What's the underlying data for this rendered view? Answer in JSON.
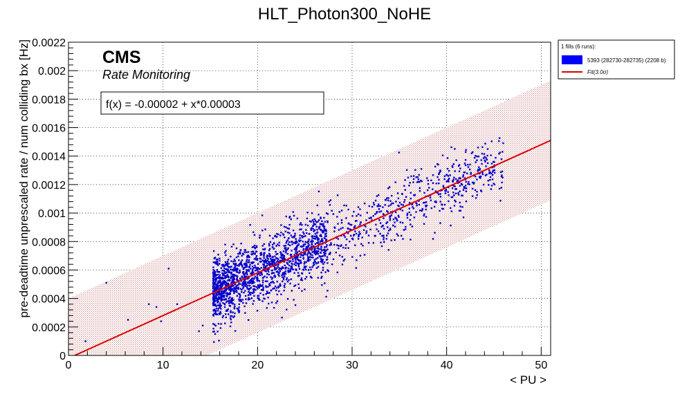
{
  "chart_data": {
    "type": "scatter",
    "title": "HLT_Photon300_NoHE",
    "xlabel": "< PU >",
    "ylabel": "pre-deadtime unprescaled rate / num colliding bx [Hz]",
    "xlim": [
      0,
      51
    ],
    "ylim": [
      0,
      0.0022
    ],
    "x_ticks": [
      0,
      10,
      20,
      30,
      40,
      50
    ],
    "x_tick_labels": [
      "0",
      "10",
      "20",
      "30",
      "40",
      "50"
    ],
    "y_ticks": [
      0,
      0.0002,
      0.0004,
      0.0006,
      0.0008,
      0.001,
      0.0012,
      0.0014,
      0.0016,
      0.0018,
      0.002,
      0.0022
    ],
    "y_tick_labels": [
      "0",
      "0.0002",
      "0.0004",
      "0.0006",
      "0.0008",
      "0.001",
      "0.0012",
      "0.0014",
      "0.0016",
      "0.0018",
      "0.002",
      "0.0022"
    ],
    "grid": true,
    "cms_label": "CMS",
    "cms_sublabel": "Rate Monitoring",
    "fit_label": "f(x) = -0.00002 + x*0.00003",
    "fit": {
      "intercept": -2e-05,
      "slope": 3e-05,
      "band_halfwidth": 0.00042,
      "x_range": [
        0,
        51
      ]
    },
    "legend": {
      "position": "top-right",
      "header": "1 fills (6 runs):",
      "entries": [
        {
          "label": "5393 (282730-282735) (2208 b)",
          "color": "#0000ff",
          "kind": "box"
        },
        {
          "label": "Fit(3.0σ)",
          "color": "#dd0000",
          "kind": "line"
        }
      ]
    },
    "series": [
      {
        "color": "#0000cc",
        "n_points": 2208,
        "x_range": [
          15.3,
          46
        ],
        "spread": 0.00011,
        "outliers": [
          {
            "x": 1.8,
            "y": 0.0001
          },
          {
            "x": 4.0,
            "y": 0.00051
          },
          {
            "x": 6.3,
            "y": 0.00025
          },
          {
            "x": 8.5,
            "y": 0.00036
          },
          {
            "x": 9.3,
            "y": 0.00034
          },
          {
            "x": 9.8,
            "y": 0.00024
          },
          {
            "x": 10.6,
            "y": 0.00061
          },
          {
            "x": 11.5,
            "y": 0.00036
          },
          {
            "x": 13.8,
            "y": 0.00017
          },
          {
            "x": 14.2,
            "y": 0.00021
          }
        ]
      }
    ]
  }
}
